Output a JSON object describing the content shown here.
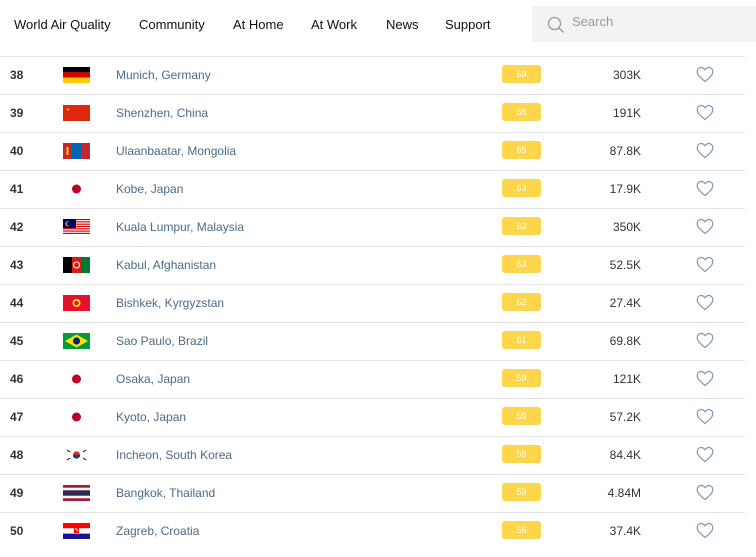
{
  "nav": {
    "items": [
      "World Air Quality",
      "Community",
      "At Home",
      "At Work",
      "News",
      "Support"
    ],
    "search_placeholder": "Search"
  },
  "colors": {
    "aqi_badge": "#fdd64b",
    "city_link": "#4a6b8a"
  },
  "rows": [
    {
      "rank": "38",
      "flag": "germany",
      "city": "Munich, Germany",
      "aqi": "69",
      "followers": "303K"
    },
    {
      "rank": "39",
      "flag": "china",
      "city": "Shenzhen, China",
      "aqi": "68",
      "followers": "191K"
    },
    {
      "rank": "40",
      "flag": "mongolia",
      "city": "Ulaanbaatar, Mongolia",
      "aqi": "65",
      "followers": "87.8K"
    },
    {
      "rank": "41",
      "flag": "japan",
      "city": "Kobe, Japan",
      "aqi": "63",
      "followers": "17.9K"
    },
    {
      "rank": "42",
      "flag": "malaysia",
      "city": "Kuala Lumpur, Malaysia",
      "aqi": "63",
      "followers": "350K"
    },
    {
      "rank": "43",
      "flag": "afghanistan",
      "city": "Kabul, Afghanistan",
      "aqi": "63",
      "followers": "52.5K"
    },
    {
      "rank": "44",
      "flag": "kyrgyzstan",
      "city": "Bishkek, Kyrgyzstan",
      "aqi": "62",
      "followers": "27.4K"
    },
    {
      "rank": "45",
      "flag": "brazil",
      "city": "Sao Paulo, Brazil",
      "aqi": "61",
      "followers": "69.8K"
    },
    {
      "rank": "46",
      "flag": "japan",
      "city": "Osaka, Japan",
      "aqi": "59",
      "followers": "121K"
    },
    {
      "rank": "47",
      "flag": "japan",
      "city": "Kyoto, Japan",
      "aqi": "59",
      "followers": "57.2K"
    },
    {
      "rank": "48",
      "flag": "south-korea",
      "city": "Incheon, South Korea",
      "aqi": "59",
      "followers": "84.4K"
    },
    {
      "rank": "49",
      "flag": "thailand",
      "city": "Bangkok, Thailand",
      "aqi": "59",
      "followers": "4.84M"
    },
    {
      "rank": "50",
      "flag": "croatia",
      "city": "Zagreb, Croatia",
      "aqi": "56",
      "followers": "37.4K"
    }
  ]
}
